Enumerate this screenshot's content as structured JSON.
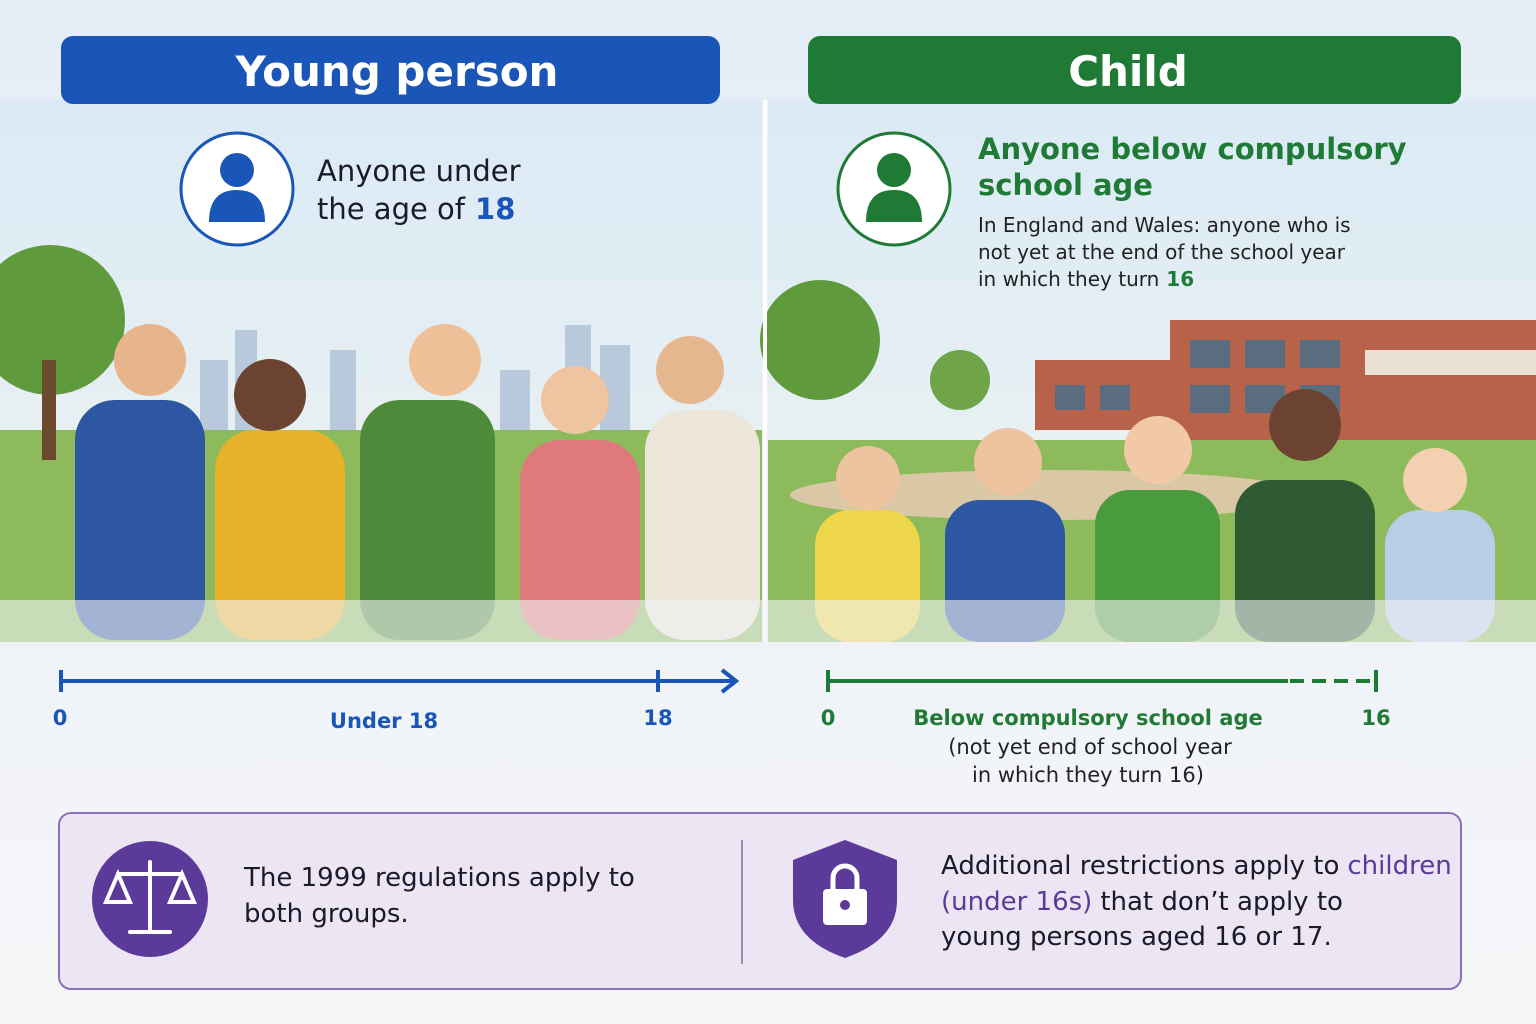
{
  "left": {
    "title": "Young person",
    "definition": {
      "line1": "Anyone under",
      "line2": "the age of",
      "highlight": "18"
    },
    "timeline": {
      "start": "0",
      "label": "Under 18",
      "end": "18"
    }
  },
  "right": {
    "title": "Child",
    "heading": [
      "Anyone below compulsory",
      "school age"
    ],
    "detail": [
      "In England and Wales: anyone who is",
      "not yet at the end of the school year",
      "in which they turn"
    ],
    "detail_highlight": "16",
    "timeline": {
      "start": "0",
      "label": "Below compulsory school age",
      "note": [
        "(not yet end of school year",
        "in which they turn 16)"
      ],
      "end": "16"
    }
  },
  "footer": {
    "left": [
      "The 1999 regulations apply to",
      "both groups."
    ],
    "right": {
      "line1": "Additional restrictions apply to",
      "line1_highlight": "children",
      "line2_highlight": "(under 16s)",
      "line2": "that don’t apply to",
      "line3": "young persons aged 16 or 17."
    }
  }
}
